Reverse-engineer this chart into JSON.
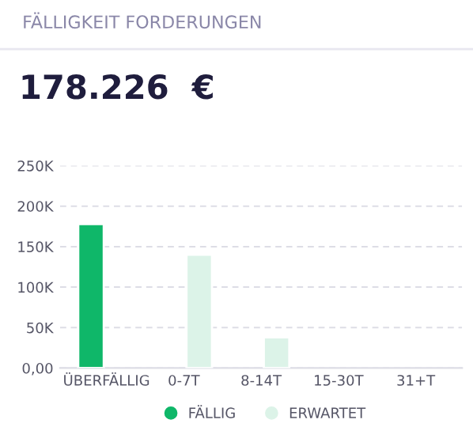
{
  "chart_data": {
    "type": "bar",
    "title": "FÄLLIGKEIT FORDERUNGEN",
    "subtitle": "178.226  €",
    "categories": [
      "ÜBERFÄLLIG",
      "0-7T",
      "8-14T",
      "15-30T",
      "31+T"
    ],
    "series": [
      {
        "name": "FÄLLIG",
        "color": "#0fb769",
        "values": [
          178000,
          null,
          null,
          null,
          null
        ]
      },
      {
        "name": "ERWARTET",
        "color": "#dcf3e8",
        "values": [
          null,
          140000,
          38000,
          null,
          null
        ]
      }
    ],
    "ylim": [
      0,
      250000
    ],
    "yticks": [
      {
        "value": 0,
        "label": "0,00"
      },
      {
        "value": 50000,
        "label": "50K"
      },
      {
        "value": 100000,
        "label": "100K"
      },
      {
        "value": 150000,
        "label": "150K"
      },
      {
        "value": 200000,
        "label": "200K"
      },
      {
        "value": 250000,
        "label": "250K"
      }
    ],
    "grid": "y",
    "legend": "bottom",
    "marker": "circle"
  }
}
